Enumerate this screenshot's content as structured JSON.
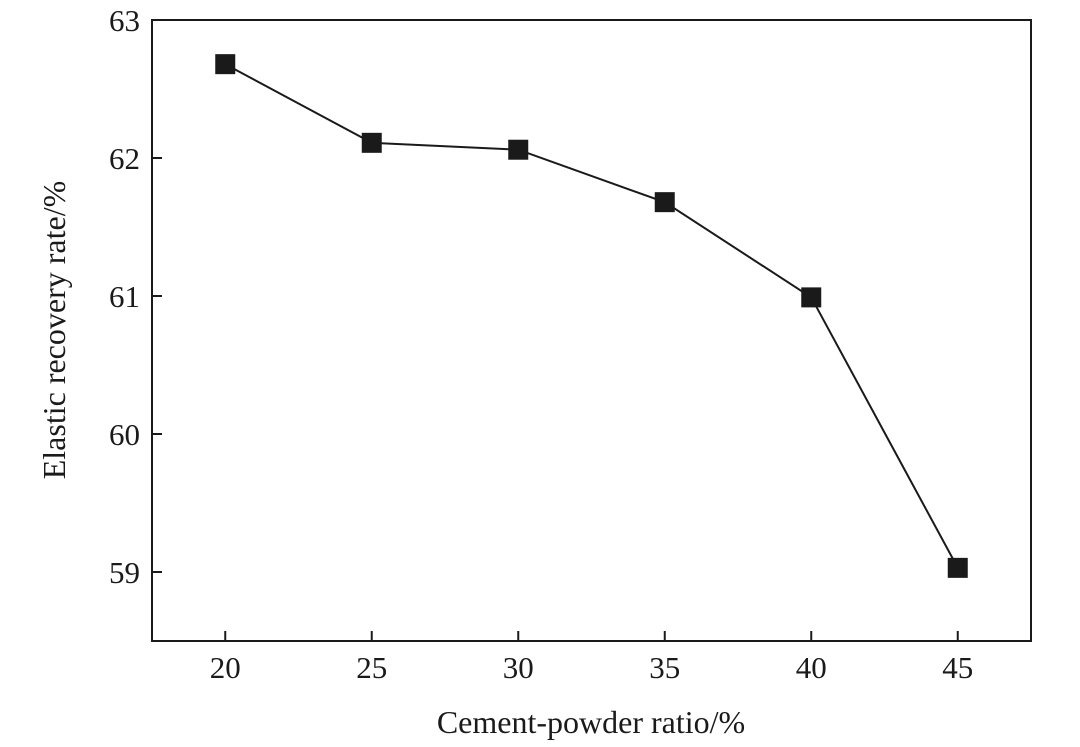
{
  "chart_data": {
    "type": "line",
    "title": "",
    "xlabel": "Cement-powder ratio/%",
    "ylabel": "Elastic recovery rate/%",
    "x": [
      20,
      25,
      30,
      35,
      40,
      45
    ],
    "series": [
      {
        "values": [
          62.68,
          62.11,
          62.06,
          61.68,
          60.99,
          59.03
        ]
      }
    ],
    "xlim": [
      17.5,
      47.5
    ],
    "ylim": [
      58.5,
      63
    ],
    "xticks": [
      20,
      25,
      30,
      35,
      40,
      45
    ],
    "yticks": [
      59,
      60,
      61,
      62,
      63
    ],
    "marker": "square",
    "grid": false,
    "colors": {
      "line": "#1a1a1a",
      "marker": "#1a1a1a",
      "axis": "#1a1a1a"
    }
  }
}
